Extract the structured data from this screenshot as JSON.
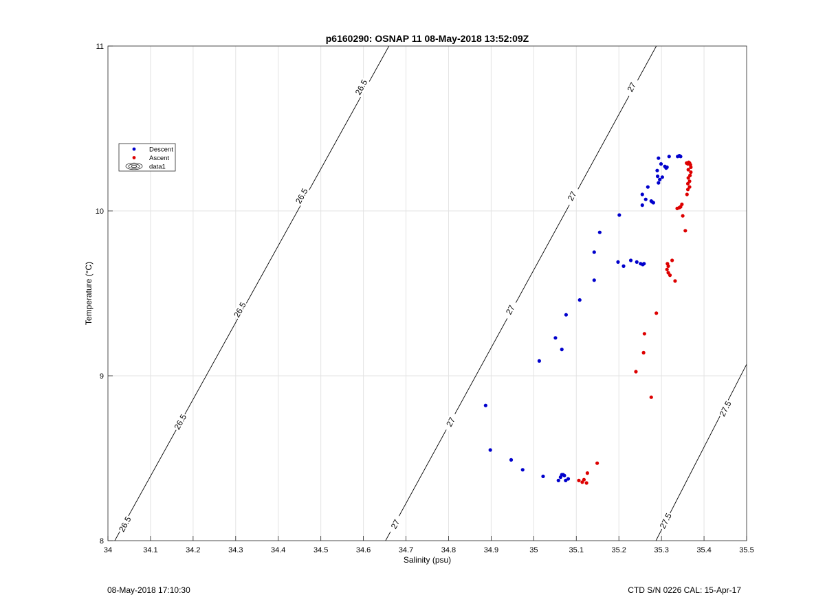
{
  "footer": {
    "left": "08-May-2018 17:10:30",
    "right": "CTD S/N 0226  CAL: 15-Apr-17"
  },
  "chart_data": {
    "type": "scatter",
    "title": "p6160290: OSNAP 11 08-May-2018 13:52:09Z",
    "xlabel": "Salinity (psu)",
    "ylabel": "Temperature (°C)",
    "xlim": [
      34,
      35.5
    ],
    "ylim": [
      8,
      11
    ],
    "xticks": [
      34,
      34.1,
      34.2,
      34.3,
      34.4,
      34.5,
      34.6,
      34.7,
      34.8,
      34.9,
      35,
      35.1,
      35.2,
      35.3,
      35.4,
      35.5
    ],
    "xtick_labels": [
      "34",
      "34.1",
      "34.2",
      "34.3",
      "34.4",
      "34.5",
      "34.6",
      "34.7",
      "34.8",
      "34.9",
      "35",
      "35.1",
      "35.2",
      "35.3",
      "35.4",
      "35.5"
    ],
    "yticks": [
      8,
      9,
      10,
      11
    ],
    "ytick_labels": [
      "8",
      "9",
      "10",
      "11"
    ],
    "grid": true,
    "legend_position": "upper-left",
    "legend": [
      {
        "label": "Descent",
        "color": "#0000cc",
        "marker": "dot"
      },
      {
        "label": "Ascent",
        "color": "#dd0000",
        "marker": "dot"
      },
      {
        "label": "data1",
        "color": "#000000",
        "marker": "contour"
      }
    ],
    "series": [
      {
        "name": "Descent",
        "color": "#0000cc",
        "points": [
          [
            34.887,
            8.82
          ],
          [
            34.898,
            8.55
          ],
          [
            34.947,
            8.49
          ],
          [
            34.974,
            8.43
          ],
          [
            35.022,
            8.39
          ],
          [
            35.058,
            8.365
          ],
          [
            35.063,
            8.385
          ],
          [
            35.066,
            8.4
          ],
          [
            35.069,
            8.4
          ],
          [
            35.072,
            8.395
          ],
          [
            35.075,
            8.365
          ],
          [
            35.081,
            8.375
          ],
          [
            35.013,
            9.09
          ],
          [
            35.066,
            9.16
          ],
          [
            35.051,
            9.23
          ],
          [
            35.076,
            9.37
          ],
          [
            35.108,
            9.46
          ],
          [
            35.142,
            9.58
          ],
          [
            35.142,
            9.75
          ],
          [
            35.155,
            9.87
          ],
          [
            35.198,
            9.69
          ],
          [
            35.211,
            9.665
          ],
          [
            35.228,
            9.7
          ],
          [
            35.242,
            9.69
          ],
          [
            35.251,
            9.68
          ],
          [
            35.256,
            9.675
          ],
          [
            35.259,
            9.68
          ],
          [
            35.201,
            9.975
          ],
          [
            35.255,
            10.035
          ],
          [
            35.255,
            10.1
          ],
          [
            35.263,
            10.07
          ],
          [
            35.268,
            10.145
          ],
          [
            35.276,
            10.06
          ],
          [
            35.278,
            10.055
          ],
          [
            35.281,
            10.05
          ],
          [
            35.29,
            10.245
          ],
          [
            35.291,
            10.21
          ],
          [
            35.293,
            10.17
          ],
          [
            35.296,
            10.19
          ],
          [
            35.299,
            10.285
          ],
          [
            35.302,
            10.205
          ],
          [
            35.308,
            10.27
          ],
          [
            35.311,
            10.26
          ],
          [
            35.313,
            10.265
          ],
          [
            35.293,
            10.32
          ],
          [
            35.318,
            10.33
          ],
          [
            35.338,
            10.33
          ],
          [
            35.342,
            10.335
          ],
          [
            35.345,
            10.33
          ]
        ]
      },
      {
        "name": "Ascent",
        "color": "#dd0000",
        "points": [
          [
            35.106,
            8.365
          ],
          [
            35.114,
            8.355
          ],
          [
            35.118,
            8.37
          ],
          [
            35.124,
            8.35
          ],
          [
            35.126,
            8.41
          ],
          [
            35.149,
            8.47
          ],
          [
            35.276,
            8.87
          ],
          [
            35.24,
            9.025
          ],
          [
            35.258,
            9.14
          ],
          [
            35.26,
            9.255
          ],
          [
            35.288,
            9.38
          ],
          [
            35.332,
            9.575
          ],
          [
            35.316,
            9.625
          ],
          [
            35.32,
            9.61
          ],
          [
            35.313,
            9.645
          ],
          [
            35.316,
            9.665
          ],
          [
            35.314,
            9.68
          ],
          [
            35.325,
            9.7
          ],
          [
            35.356,
            9.88
          ],
          [
            35.35,
            9.97
          ],
          [
            35.337,
            10.015
          ],
          [
            35.342,
            10.02
          ],
          [
            35.345,
            10.025
          ],
          [
            35.348,
            10.04
          ],
          [
            35.36,
            10.1
          ],
          [
            35.362,
            10.13
          ],
          [
            35.366,
            10.145
          ],
          [
            35.362,
            10.165
          ],
          [
            35.366,
            10.18
          ],
          [
            35.363,
            10.2
          ],
          [
            35.367,
            10.215
          ],
          [
            35.369,
            10.235
          ],
          [
            35.363,
            10.25
          ],
          [
            35.369,
            10.265
          ],
          [
            35.368,
            10.28
          ],
          [
            35.362,
            10.285
          ],
          [
            35.359,
            10.29
          ],
          [
            35.364,
            10.295
          ],
          [
            35.366,
            10.29
          ]
        ]
      }
    ],
    "isopycnals": [
      {
        "value": 26.5,
        "label": "26.5",
        "line": [
          [
            34.016,
            8.0
          ],
          [
            34.66,
            11.0
          ]
        ],
        "label_positions": [
          [
            34.04,
            8.1
          ],
          [
            34.17,
            8.72
          ],
          [
            34.31,
            9.4
          ],
          [
            34.455,
            10.09
          ],
          [
            34.595,
            10.75
          ]
        ]
      },
      {
        "value": 27,
        "label": "27",
        "line": [
          [
            34.652,
            8.0
          ],
          [
            35.288,
            11.0
          ]
        ],
        "label_positions": [
          [
            34.675,
            8.1
          ],
          [
            34.805,
            8.72
          ],
          [
            34.945,
            9.4
          ],
          [
            35.09,
            10.09
          ],
          [
            35.23,
            10.75
          ]
        ]
      },
      {
        "value": 27.5,
        "label": "27.5",
        "line": [
          [
            35.287,
            8.0
          ],
          [
            35.5,
            9.07
          ]
        ],
        "label_positions": [
          [
            35.31,
            8.12
          ],
          [
            35.45,
            8.8
          ]
        ]
      }
    ]
  }
}
